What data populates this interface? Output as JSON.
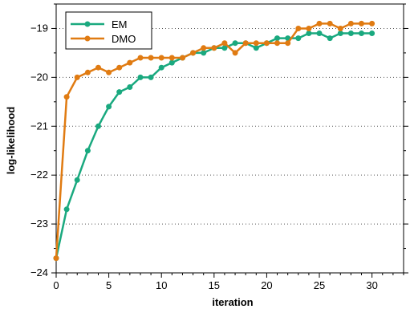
{
  "chart_data": {
    "type": "line",
    "title": "",
    "xlabel": "iteration",
    "ylabel": "log-likelihood",
    "xlim": [
      0,
      33
    ],
    "ylim": [
      -24,
      -18.5
    ],
    "xticks": [
      0,
      5,
      10,
      15,
      20,
      25,
      30
    ],
    "yticks": [
      -24,
      -23,
      -22,
      -21,
      -20,
      -19
    ],
    "grid": {
      "horizontal": true,
      "style": "dotted"
    },
    "legend": "top-left",
    "x": [
      0,
      1,
      2,
      3,
      4,
      5,
      6,
      7,
      8,
      9,
      10,
      11,
      12,
      13,
      14,
      15,
      16,
      17,
      18,
      19,
      20,
      21,
      22,
      23,
      24,
      25,
      26,
      27,
      28,
      29,
      30
    ],
    "series": [
      {
        "name": "EM",
        "color": "#1aa97f",
        "values": [
          -23.7,
          -22.7,
          -22.1,
          -21.5,
          -21.0,
          -20.6,
          -20.3,
          -20.2,
          -20.0,
          -20.0,
          -19.8,
          -19.7,
          -19.6,
          -19.5,
          -19.5,
          -19.4,
          -19.4,
          -19.3,
          -19.3,
          -19.4,
          -19.3,
          -19.2,
          -19.2,
          -19.2,
          -19.1,
          -19.1,
          -19.2,
          -19.1,
          -19.1,
          -19.1,
          -19.1
        ]
      },
      {
        "name": "DMO",
        "color": "#e07b12",
        "values": [
          -23.7,
          -20.4,
          -20.0,
          -19.9,
          -19.8,
          -19.9,
          -19.8,
          -19.7,
          -19.6,
          -19.6,
          -19.6,
          -19.6,
          -19.6,
          -19.5,
          -19.4,
          -19.4,
          -19.3,
          -19.5,
          -19.3,
          -19.3,
          -19.3,
          -19.3,
          -19.3,
          -19.0,
          -19.0,
          -18.9,
          -18.9,
          -19.0,
          -18.9,
          -18.9,
          -18.9
        ]
      }
    ]
  }
}
